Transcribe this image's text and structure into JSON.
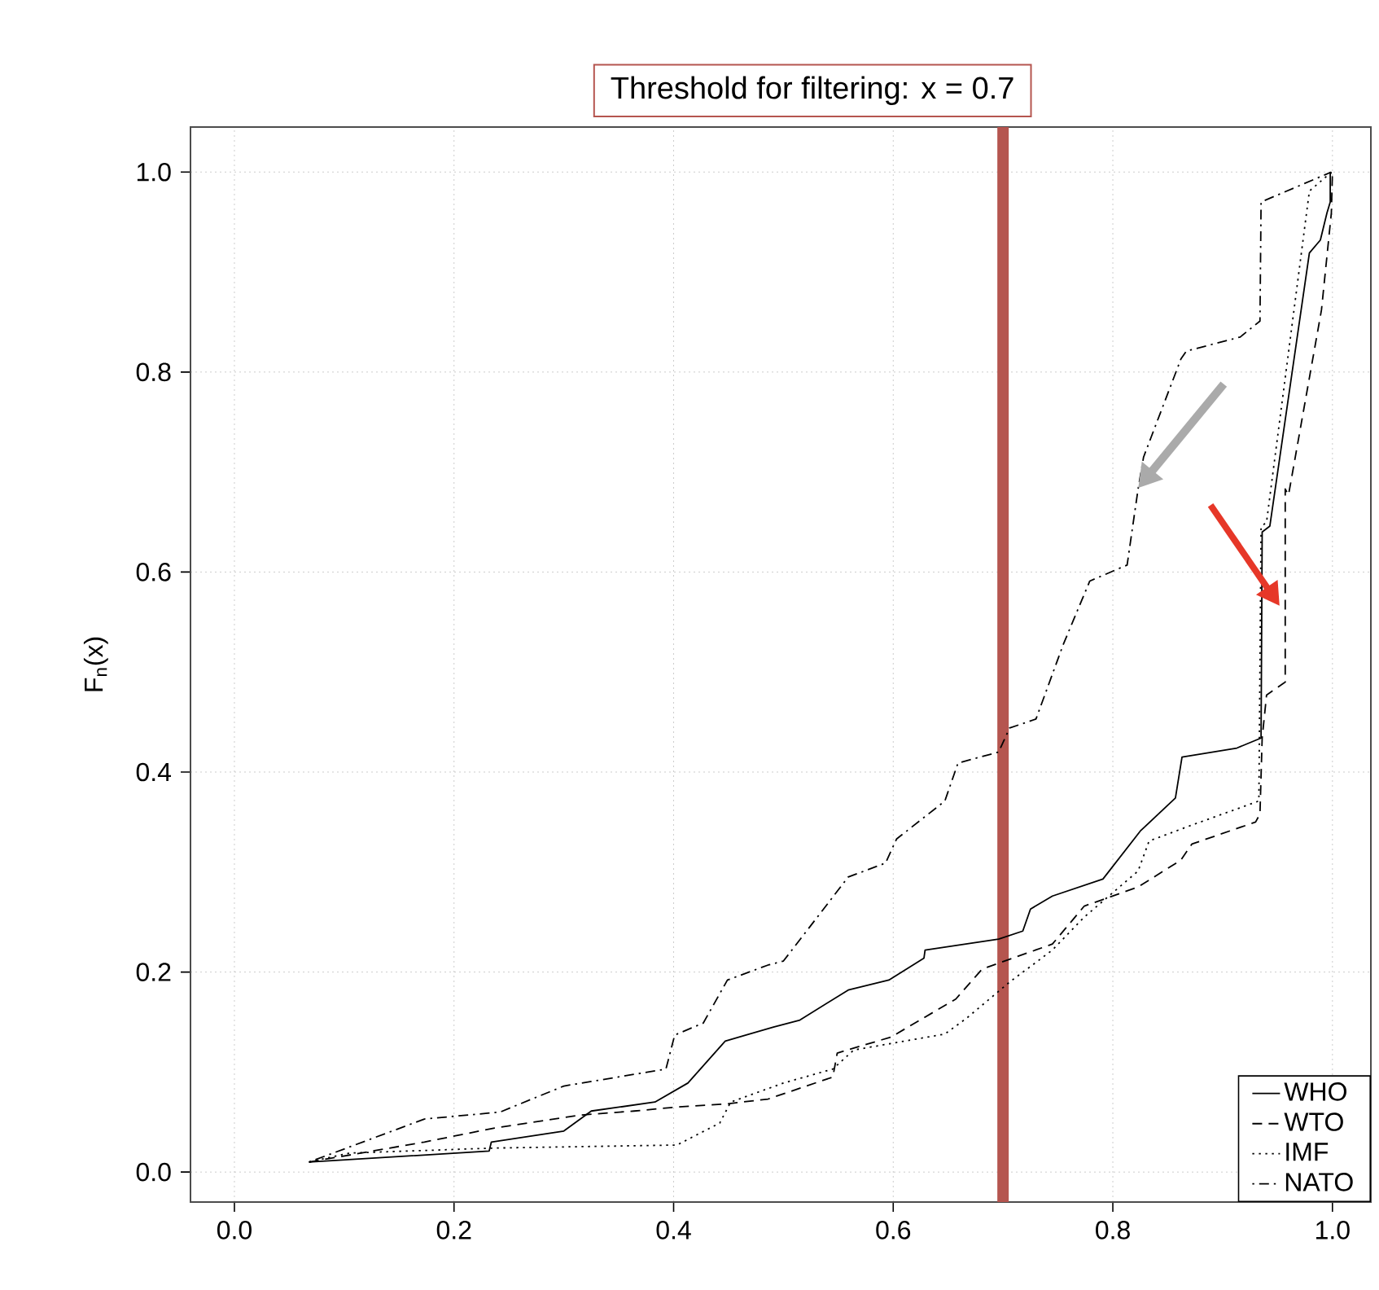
{
  "chart_data": {
    "type": "line",
    "ylabel": "F$_{n}$(x)",
    "xlim": [
      -0.04,
      1.035
    ],
    "ylim": [
      -0.03,
      1.045
    ],
    "xticks": [
      {
        "value": 0,
        "label": "0.0"
      },
      {
        "value": 0.2,
        "label": "0.2"
      },
      {
        "value": 0.4,
        "label": "0.4"
      },
      {
        "value": 0.6,
        "label": "0.6"
      },
      {
        "value": 0.8,
        "label": "0.8"
      },
      {
        "value": 1,
        "label": "1.0"
      }
    ],
    "yticks": [
      {
        "value": 0,
        "label": "0.0"
      },
      {
        "value": 0.2,
        "label": "0.2"
      },
      {
        "value": 0.4,
        "label": "0.4"
      },
      {
        "value": 0.6,
        "label": "0.6"
      },
      {
        "value": 0.8,
        "label": "0.8"
      },
      {
        "value": 1,
        "label": "1.0"
      }
    ],
    "grid": true,
    "legend": "bottom right",
    "ref_lines": [
      {
        "axis": "x",
        "value": 0.7,
        "label": "Threshold for filtering: x = 0.7",
        "color": "#b5554f"
      }
    ],
    "series": [
      {
        "name": "WHO",
        "color": "#000000",
        "line_style": "solid",
        "x": [
          0.068,
          0.232,
          0.234,
          0.3,
          0.325,
          0.383,
          0.413,
          0.447,
          0.491,
          0.515,
          0.559,
          0.596,
          0.628,
          0.629,
          0.696,
          0.718,
          0.725,
          0.745,
          0.791,
          0.825,
          0.857,
          0.863,
          0.913,
          0.935,
          0.936,
          0.943,
          0.979,
          0.989,
          0.995,
          0.998,
          0.998
        ],
        "values": [
          0.01,
          0.021,
          0.03,
          0.041,
          0.061,
          0.07,
          0.089,
          0.131,
          0.145,
          0.152,
          0.182,
          0.192,
          0.214,
          0.222,
          0.233,
          0.241,
          0.263,
          0.276,
          0.293,
          0.341,
          0.374,
          0.415,
          0.424,
          0.434,
          0.64,
          0.646,
          0.919,
          0.932,
          0.959,
          0.97,
          1.0
        ]
      },
      {
        "name": "WTO",
        "color": "#000000",
        "line_style": "dashed",
        "x": [
          0.068,
          0.173,
          0.237,
          0.315,
          0.364,
          0.403,
          0.447,
          0.486,
          0.545,
          0.549,
          0.598,
          0.657,
          0.681,
          0.745,
          0.774,
          0.823,
          0.862,
          0.872,
          0.93,
          0.934,
          0.936,
          0.94,
          0.957,
          0.957,
          0.96,
          0.99,
          0.999,
          1.0
        ],
        "values": [
          0.01,
          0.03,
          0.044,
          0.057,
          0.061,
          0.065,
          0.068,
          0.073,
          0.095,
          0.119,
          0.135,
          0.173,
          0.203,
          0.228,
          0.266,
          0.285,
          0.312,
          0.328,
          0.35,
          0.358,
          0.434,
          0.477,
          0.49,
          0.683,
          0.677,
          0.862,
          0.959,
          1.0
        ]
      },
      {
        "name": "IMF",
        "color": "#000000",
        "line_style": "dotted",
        "x": [
          0.068,
          0.105,
          0.237,
          0.403,
          0.442,
          0.452,
          0.5,
          0.545,
          0.564,
          0.647,
          0.667,
          0.706,
          0.745,
          0.774,
          0.823,
          0.833,
          0.872,
          0.933,
          0.935,
          0.94,
          0.979,
          0.996,
          1.0
        ],
        "values": [
          0.01,
          0.019,
          0.024,
          0.027,
          0.049,
          0.07,
          0.089,
          0.103,
          0.122,
          0.138,
          0.154,
          0.19,
          0.222,
          0.255,
          0.301,
          0.331,
          0.347,
          0.371,
          0.645,
          0.65,
          0.981,
          0.997,
          1.0
        ]
      },
      {
        "name": "NATO",
        "color": "#000000",
        "line_style": "dashdot",
        "x": [
          0.068,
          0.173,
          0.242,
          0.3,
          0.393,
          0.401,
          0.427,
          0.449,
          0.486,
          0.5,
          0.559,
          0.593,
          0.603,
          0.647,
          0.659,
          0.696,
          0.706,
          0.73,
          0.755,
          0.779,
          0.813,
          0.823,
          0.828,
          0.862,
          0.867,
          0.916,
          0.934,
          0.935,
          0.999
        ],
        "values": [
          0.01,
          0.053,
          0.06,
          0.086,
          0.103,
          0.137,
          0.149,
          0.192,
          0.207,
          0.211,
          0.295,
          0.309,
          0.333,
          0.371,
          0.409,
          0.42,
          0.444,
          0.453,
          0.528,
          0.591,
          0.607,
          0.683,
          0.715,
          0.813,
          0.821,
          0.835,
          0.851,
          0.97,
          1.0
        ]
      }
    ]
  }
}
